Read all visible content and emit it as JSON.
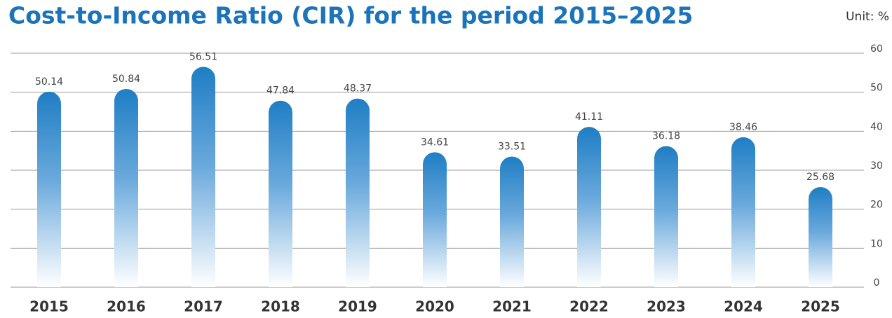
{
  "chart_data": {
    "type": "bar",
    "title": "Cost-to-Income Ratio (CIR) for the period 2015–2025",
    "unit_label": "Unit: %",
    "categories": [
      "2015",
      "2016",
      "2017",
      "2018",
      "2019",
      "2020",
      "2021",
      "2022",
      "2023",
      "2024",
      "2025"
    ],
    "values": [
      50.14,
      50.84,
      56.51,
      47.84,
      48.37,
      34.61,
      33.51,
      41.11,
      36.18,
      38.46,
      25.68
    ],
    "color": "#1f7ec4",
    "ylim": [
      0,
      60
    ],
    "yticks": [
      0,
      10,
      20,
      30,
      40,
      50,
      60
    ],
    "grid": true
  }
}
